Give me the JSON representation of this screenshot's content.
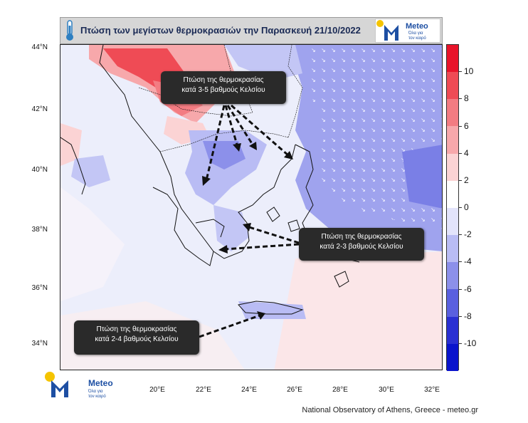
{
  "header": {
    "title": "Πτώση των μεγίστων θερμοκρασιών την Παρασκευή 21/10/2022",
    "logo_name": "Meteo",
    "logo_tagline_1": "Όλα για",
    "logo_tagline_2": "τον καιρό"
  },
  "axes": {
    "lat_labels": [
      "44°N",
      "42°N",
      "40°N",
      "38°N",
      "36°N",
      "34°N"
    ],
    "lon_labels": [
      "20°E",
      "22°E",
      "24°E",
      "26°E",
      "28°E",
      "30°E",
      "32°E"
    ]
  },
  "colorbar": {
    "labels": [
      "10",
      "8",
      "6",
      "4",
      "2",
      "0",
      "-2",
      "-4",
      "-6",
      "-8",
      "-10"
    ],
    "colors": [
      "#e8142a",
      "#ef4b55",
      "#f37c82",
      "#f7a8ab",
      "#fbd3d4",
      "#ffffff",
      "#e3e4fb",
      "#b9bcf4",
      "#8c90ea",
      "#5a60df",
      "#2a30d2",
      "#0a14cc"
    ]
  },
  "callouts": {
    "top_1": "Πτώση της θερμοκρασίας",
    "top_2": "κατά 3-5 βαθμούς Κελσίου",
    "right_1": "Πτώση της θερμοκρασίας",
    "right_2": "κατά 2-3 βαθμούς Κελσίου",
    "bottom_1": "Πτώση της θερμοκρασίας",
    "bottom_2": "κατά 2-4 βαθμούς Κελσίου"
  },
  "footer": {
    "logo_name": "Meteo",
    "logo_tagline_1": "Όλα για",
    "logo_tagline_2": "τον καιρό",
    "credits": "National Observatory of Athens, Greece - meteo.gr"
  },
  "map_marks": {
    "wind_glyph": "↘"
  }
}
